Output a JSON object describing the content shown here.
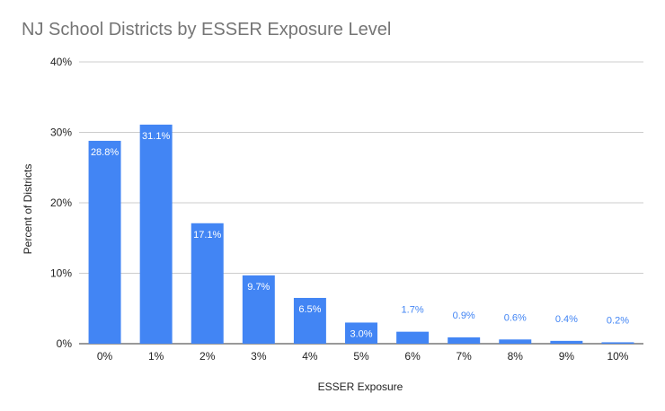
{
  "chart_data": {
    "type": "bar",
    "title": "NJ School Districts by ESSER Exposure Level",
    "xlabel": "ESSER Exposure",
    "ylabel": "Percent of Districts",
    "categories": [
      "0%",
      "1%",
      "2%",
      "3%",
      "4%",
      "5%",
      "6%",
      "7%",
      "8%",
      "9%",
      "10%"
    ],
    "values": [
      28.8,
      31.1,
      17.1,
      9.7,
      6.5,
      3.0,
      1.7,
      0.9,
      0.6,
      0.4,
      0.2
    ],
    "data_labels": [
      "28.8%",
      "31.1%",
      "17.1%",
      "9.7%",
      "6.5%",
      "3.0%",
      "1.7%",
      "0.9%",
      "0.6%",
      "0.4%",
      "0.2%"
    ],
    "ylim": [
      0,
      40
    ],
    "yticks": [
      0,
      10,
      20,
      30,
      40
    ],
    "ytick_labels": [
      "0%",
      "10%",
      "20%",
      "30%",
      "40%"
    ],
    "grid": true,
    "legend": "none",
    "colors": {
      "bar": "#4285f4",
      "label_inside": "#ffffff",
      "label_outside": "#4285f4",
      "grid": "#cccccc",
      "baseline": "#333333"
    }
  }
}
